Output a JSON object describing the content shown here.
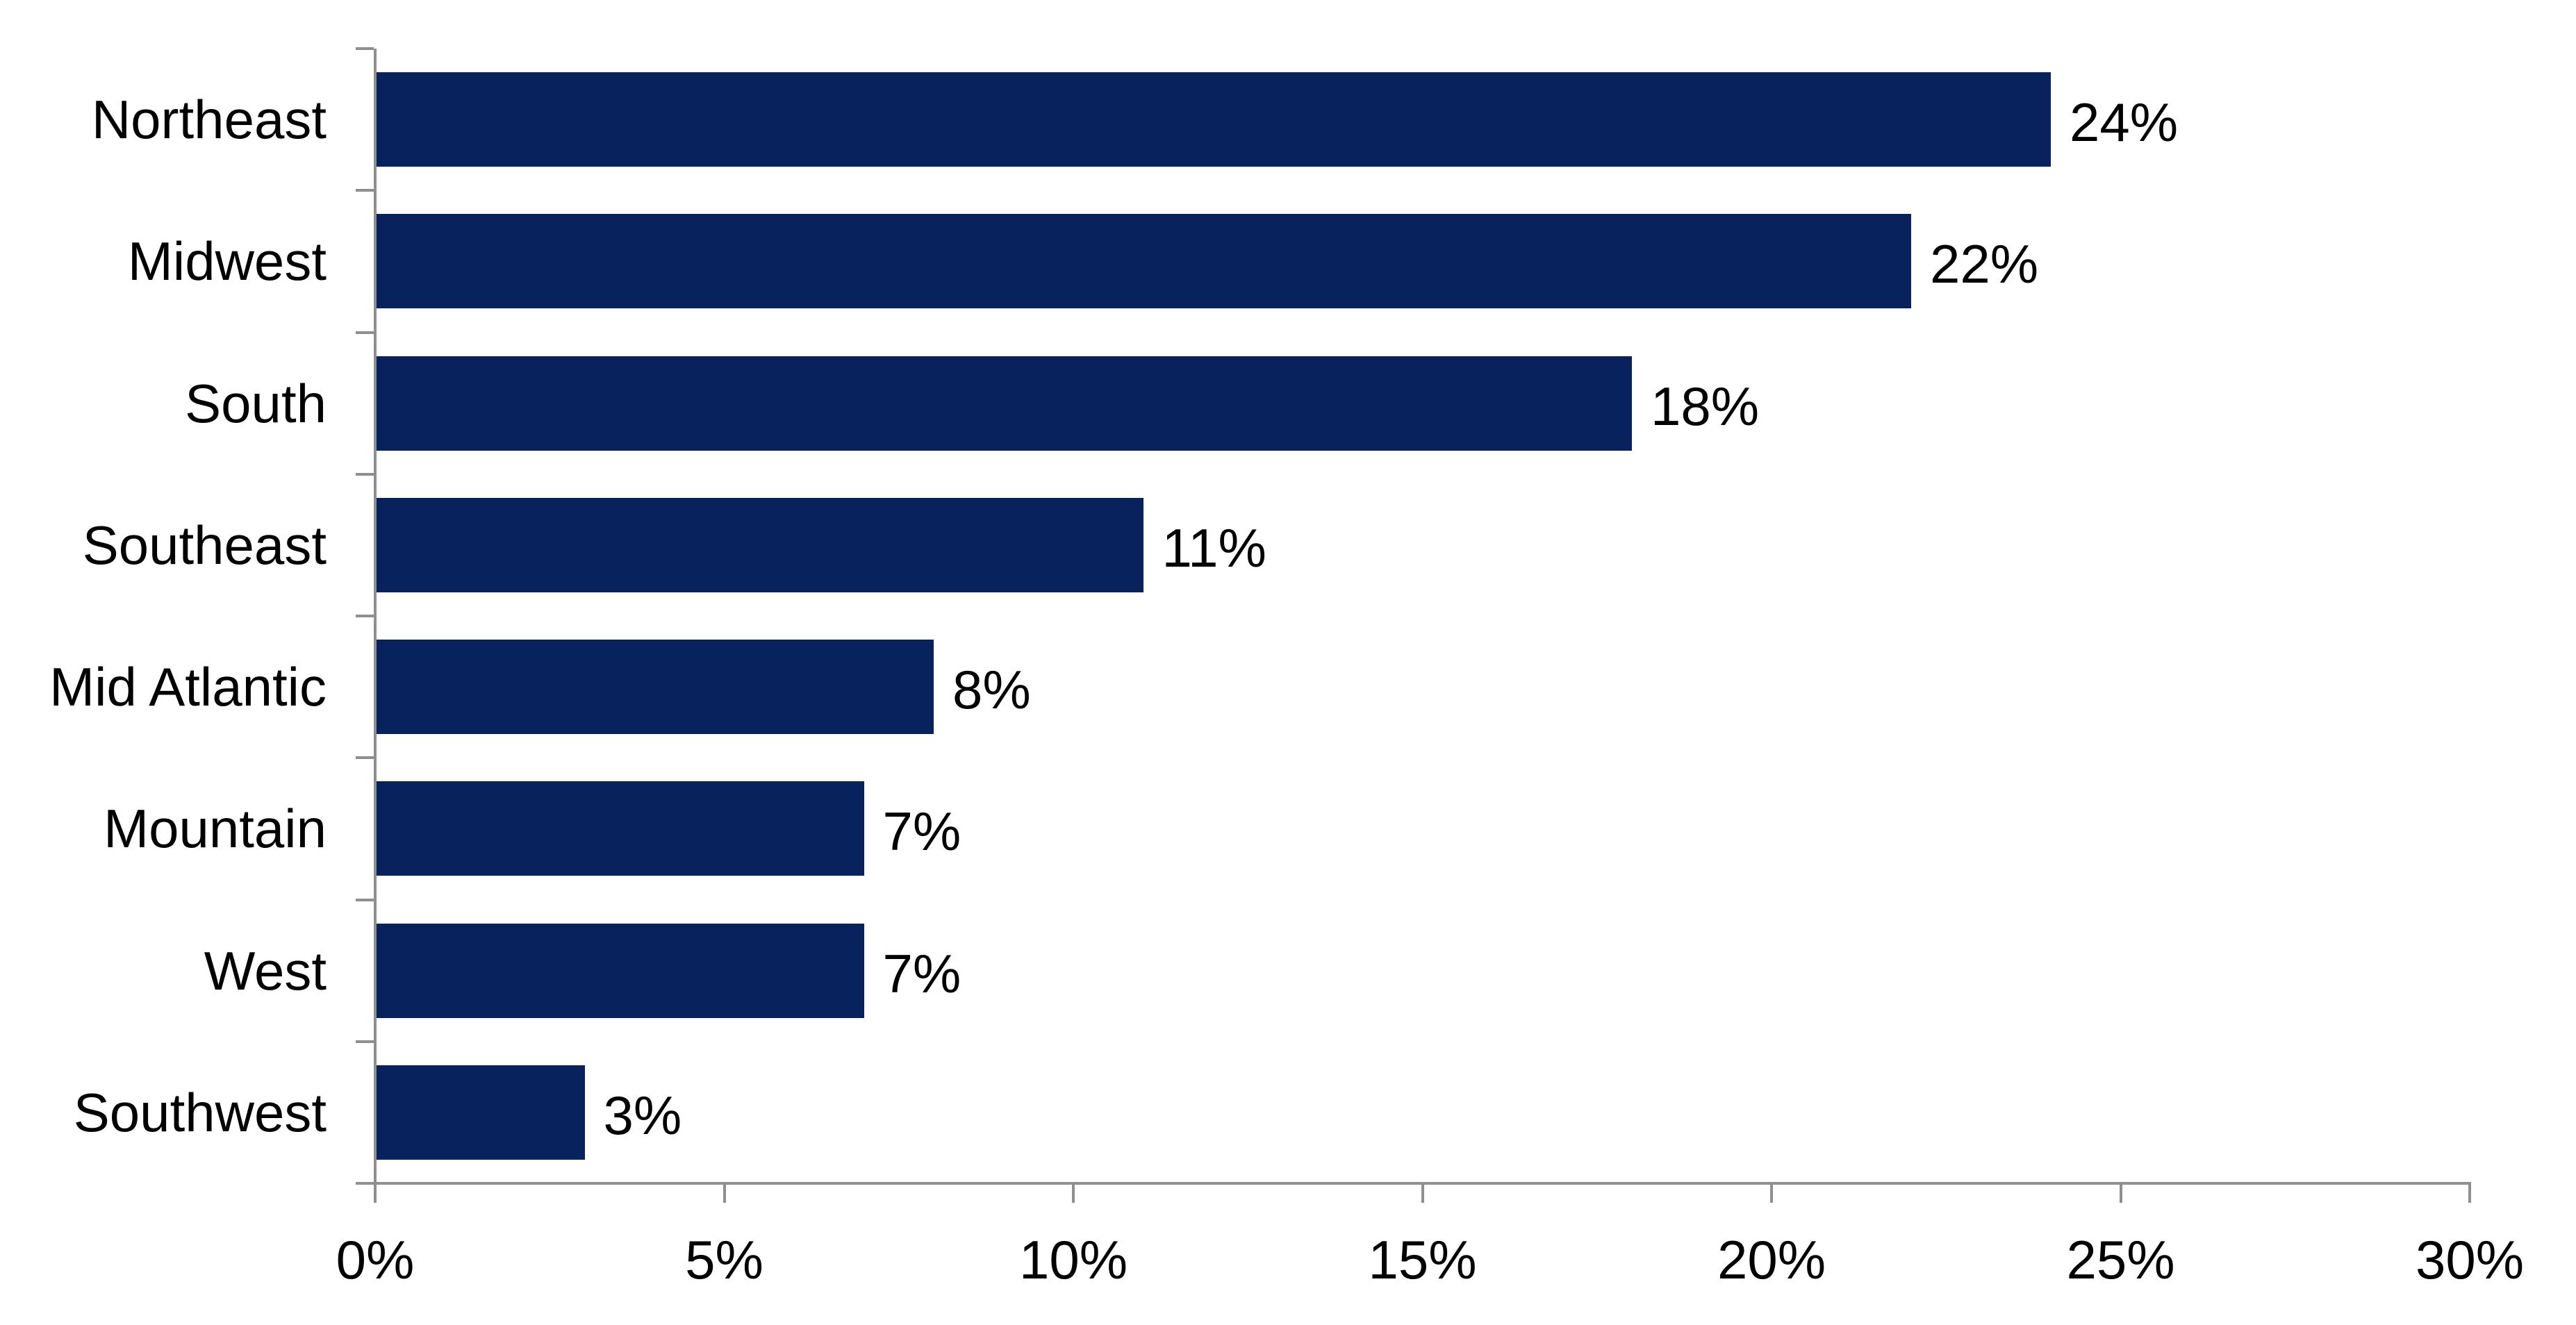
{
  "chart_data": {
    "type": "bar",
    "orientation": "horizontal",
    "title": "",
    "xlabel": "",
    "ylabel": "",
    "categories": [
      "Northeast",
      "Midwest",
      "South",
      "Southeast",
      "Mid Atlantic",
      "Mountain",
      "West",
      "Southwest"
    ],
    "values": [
      24,
      22,
      18,
      11,
      8,
      7,
      7,
      3
    ],
    "data_labels": [
      "24%",
      "22%",
      "18%",
      "11%",
      "8%",
      "7%",
      "7%",
      "3%"
    ],
    "x_axis": {
      "min": 0,
      "max": 30,
      "tick_values": [
        0,
        5,
        10,
        15,
        20,
        25,
        30
      ],
      "tick_labels": [
        "0%",
        "5%",
        "10%",
        "15%",
        "20%",
        "25%",
        "30%"
      ]
    },
    "grid": false,
    "legend": false,
    "colors": {
      "bar": "#08225e",
      "axis": "#8f8f8f",
      "text": "#000000",
      "background": "#ffffff"
    }
  }
}
